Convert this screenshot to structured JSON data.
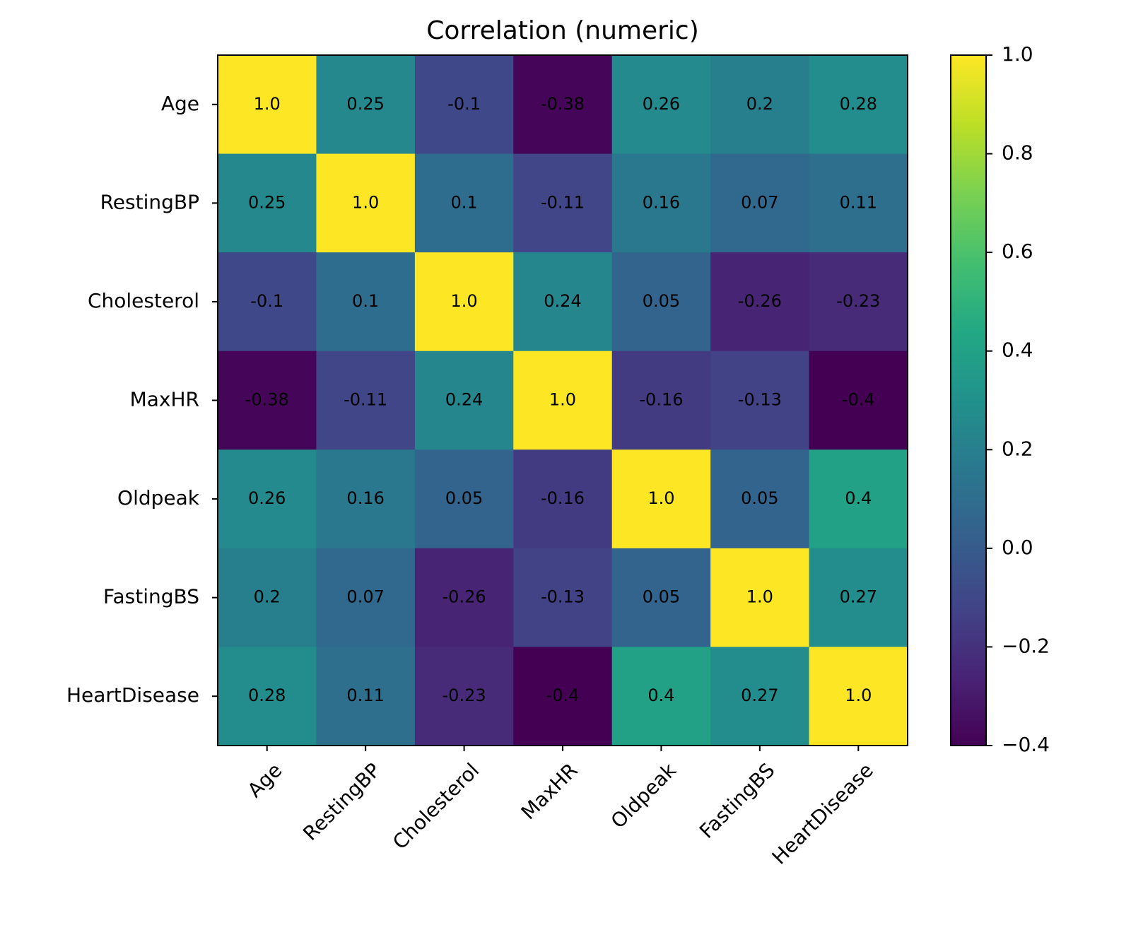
{
  "chart_data": {
    "type": "heatmap",
    "title": "Correlation (numeric)",
    "xcategories": [
      "Age",
      "RestingBP",
      "Cholesterol",
      "MaxHR",
      "Oldpeak",
      "FastingBS",
      "HeartDisease"
    ],
    "ycategories": [
      "Age",
      "RestingBP",
      "Cholesterol",
      "MaxHR",
      "Oldpeak",
      "FastingBS",
      "HeartDisease"
    ],
    "values": [
      [
        1,
        0.25,
        -0.1,
        -0.38,
        0.26,
        0.2,
        0.28
      ],
      [
        0.25,
        1,
        0.1,
        -0.11,
        0.16,
        0.07,
        0.11
      ],
      [
        -0.1,
        0.1,
        1,
        0.24,
        0.05,
        -0.26,
        -0.23
      ],
      [
        -0.38,
        -0.11,
        0.24,
        1,
        -0.16,
        -0.13,
        -0.4
      ],
      [
        0.26,
        0.16,
        0.05,
        -0.16,
        1,
        0.05,
        0.4
      ],
      [
        0.2,
        0.07,
        -0.26,
        -0.13,
        0.05,
        1,
        0.27
      ],
      [
        0.28,
        0.11,
        -0.23,
        -0.4,
        0.4,
        0.27,
        1
      ]
    ],
    "value_labels": [
      [
        "1.0",
        "0.25",
        "-0.1",
        "-0.38",
        "0.26",
        "0.2",
        "0.28"
      ],
      [
        "0.25",
        "1.0",
        "0.1",
        "-0.11",
        "0.16",
        "0.07",
        "0.11"
      ],
      [
        "-0.1",
        "0.1",
        "1.0",
        "0.24",
        "0.05",
        "-0.26",
        "-0.23"
      ],
      [
        "-0.38",
        "-0.11",
        "0.24",
        "1.0",
        "-0.16",
        "-0.13",
        "-0.4"
      ],
      [
        "0.26",
        "0.16",
        "0.05",
        "-0.16",
        "1.0",
        "0.05",
        "0.4"
      ],
      [
        "0.2",
        "0.07",
        "-0.26",
        "-0.13",
        "0.05",
        "1.0",
        "0.27"
      ],
      [
        "0.28",
        "0.11",
        "-0.23",
        "-0.4",
        "0.4",
        "0.27",
        "1.0"
      ]
    ],
    "colormap": "viridis",
    "clim": [
      -0.4,
      1
    ],
    "cticks": [
      {
        "value": -0.4,
        "label": "−0.4"
      },
      {
        "value": -0.2,
        "label": "−0.2"
      },
      {
        "value": 0,
        "label": "0.0"
      },
      0.2,
      0.4,
      0.6,
      0.8,
      {
        "value": 1,
        "label": "1.0"
      }
    ]
  }
}
